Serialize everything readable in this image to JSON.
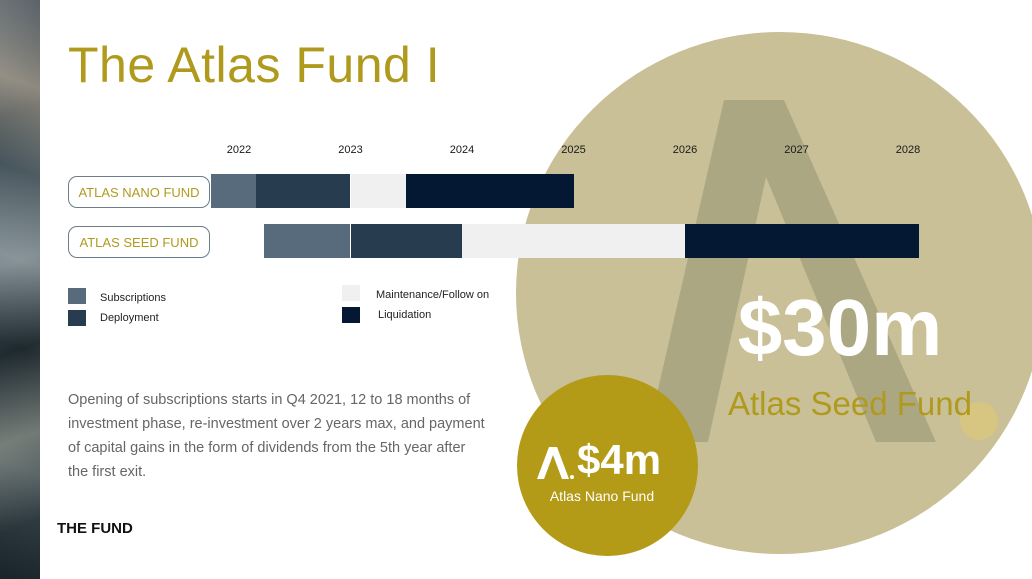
{
  "title": "The Atlas Fund I",
  "footer": "THE FUND",
  "timeline": {
    "years": [
      "2022",
      "2023",
      "2024",
      "2025",
      "2026",
      "2027",
      "2028"
    ],
    "funds": [
      {
        "name": "ATLAS NANO FUND",
        "segments": [
          {
            "phase": "Subscriptions",
            "start": 2021.75,
            "end": 2022.15
          },
          {
            "phase": "Deployment",
            "start": 2022.15,
            "end": 2023.0
          },
          {
            "phase": "Maintenance/Follow on",
            "start": 2023.0,
            "end": 2023.5
          },
          {
            "phase": "Liquidation",
            "start": 2023.5,
            "end": 2025.0
          }
        ]
      },
      {
        "name": "ATLAS SEED FUND",
        "segments": [
          {
            "phase": "Subscriptions",
            "start": 2022.22,
            "end": 2023.0
          },
          {
            "phase": "Deployment",
            "start": 2023.0,
            "end": 2024.0
          },
          {
            "phase": "Maintenance/Follow on",
            "start": 2024.0,
            "end": 2026.0
          },
          {
            "phase": "Liquidation",
            "start": 2026.0,
            "end": 2028.1
          }
        ]
      }
    ],
    "legend": [
      {
        "label": "Subscriptions",
        "color": "#586b7d"
      },
      {
        "label": "Deployment",
        "color": "#283c50"
      },
      {
        "label": "Maintenance/Follow on",
        "color": "#f0f0f0"
      },
      {
        "label": "Liquidation",
        "color": "#051833"
      }
    ]
  },
  "description": "Opening of subscriptions starts in Q4 2021, 12 to 18 months of investment phase, re-investment over 2 years max, and payment of capital gains in the form of dividends from the 5th year after the first exit.",
  "seed": {
    "amount": "$30m",
    "label": "Atlas Seed Fund"
  },
  "nano": {
    "amount": "$4m",
    "label": "Atlas Nano Fund",
    "logo": "atlas-logo-icon"
  },
  "colors": {
    "gold": "#b09a1e",
    "big_circle": "#c9c097",
    "small_circle": "#b39a17"
  }
}
